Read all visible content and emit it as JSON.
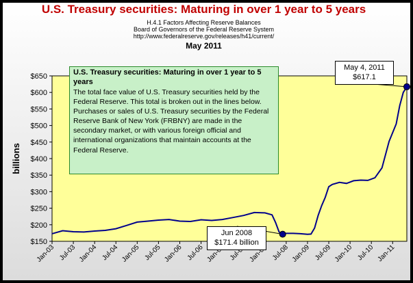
{
  "header": {
    "title": "U.S. Treasury securities: Maturing in over 1 year to 5 years",
    "line1": "H.4.1 Factors Affecting Reserve Balances",
    "line2": "Board of Governors of the Federal Reserve System",
    "line3": "http://www.federalreserve.gov/releases/h41/current/",
    "line4": "May 2011"
  },
  "note": {
    "title": "U.S. Treasury securities: Maturing in over 1 year to 5 years",
    "body": "The total face value of U.S. Treasury securities held by the Federal Reserve.  This total is broken out in the lines below.  Purchases or sales of U.S. Treasury securities by the Federal Reserve Bank of New York (FRBNY) are made in the secondary market, or with various foreign official and international organizations that maintain accounts at the Federal Reserve."
  },
  "callouts": [
    {
      "line1": "May 4, 2011",
      "line2": "$617.1",
      "x": "2011-05",
      "y": 617.1
    },
    {
      "line1": "Jun 2008",
      "line2": "$171.4 billion",
      "x": "2008-06",
      "y": 171.4
    }
  ],
  "colors": {
    "plot_bg": "#ffff99",
    "line": "#00008b",
    "title": "#c00000",
    "note_bg": "#c8f0c8"
  },
  "chart_data": {
    "type": "line",
    "ylabel": "billions",
    "xlabel": "",
    "ylim": [
      150,
      650
    ],
    "yticks": [
      "$150",
      "$200",
      "$250",
      "$300",
      "$350",
      "$400",
      "$450",
      "$500",
      "$550",
      "$600",
      "$650"
    ],
    "xticks": [
      "Jan-03",
      "Jul-03",
      "Jan-04",
      "Jul-04",
      "Jan-05",
      "Jul-05",
      "Jan-06",
      "Jul-06",
      "Jan-07",
      "Jul-07",
      "Jan-08",
      "Jul-08",
      "Jan-09",
      "Jul-09",
      "Jan-10",
      "Jul-10",
      "Jan-11"
    ],
    "grid": false,
    "series": [
      {
        "x": [
          "2003-01",
          "2003-04",
          "2003-07",
          "2003-10",
          "2004-01",
          "2004-04",
          "2004-07",
          "2004-10",
          "2005-01",
          "2005-04",
          "2005-07",
          "2005-10",
          "2006-01",
          "2006-04",
          "2006-07",
          "2006-10",
          "2007-01",
          "2007-04",
          "2007-07",
          "2007-10",
          "2008-01",
          "2008-03",
          "2008-04",
          "2008-05",
          "2008-06",
          "2008-07",
          "2008-09",
          "2008-11",
          "2009-01",
          "2009-02",
          "2009-03",
          "2009-04",
          "2009-05",
          "2009-06",
          "2009-07",
          "2009-08",
          "2009-10",
          "2009-12",
          "2010-02",
          "2010-04",
          "2010-06",
          "2010-08",
          "2010-10",
          "2010-12",
          "2011-02",
          "2011-03",
          "2011-04",
          "2011-05"
        ],
        "values": [
          173,
          182,
          179,
          178,
          181,
          183,
          188,
          198,
          208,
          211,
          214,
          216,
          211,
          210,
          215,
          213,
          216,
          222,
          228,
          237,
          236,
          230,
          207,
          178,
          171.4,
          174,
          174,
          173,
          171,
          172,
          190,
          228,
          258,
          283,
          315,
          322,
          328,
          325,
          333,
          335,
          334,
          342,
          372,
          452,
          505,
          560,
          600,
          617.1
        ]
      }
    ]
  }
}
